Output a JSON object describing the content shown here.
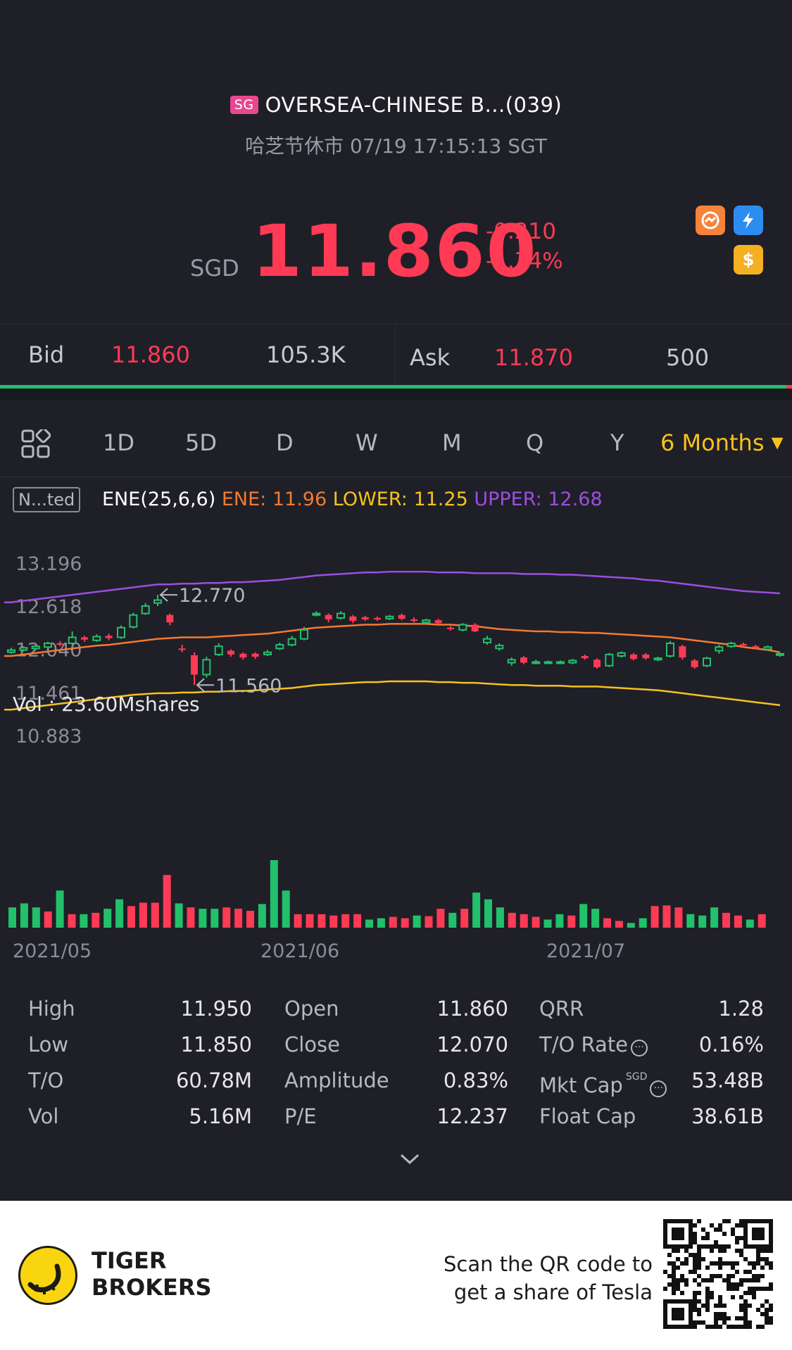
{
  "header": {
    "market_badge": "SG",
    "title": "OVERSEA-CHINESE B...(039)",
    "status": "哈芝节休市 07/19 17:15:13 SGT",
    "currency": "SGD",
    "price": "11.860",
    "change": "-0.210",
    "change_pct": "-1.74%",
    "icons": [
      "orange-circle-icon",
      "lightning-level1-icon",
      "dollar-coin-icon"
    ]
  },
  "bidask": {
    "bid_label": "Bid",
    "bid_price": "11.860",
    "bid_vol": "105.3K",
    "ask_label": "Ask",
    "ask_price": "11.870",
    "ask_vol": "500"
  },
  "tabs": [
    {
      "label": "1D"
    },
    {
      "label": "5D"
    },
    {
      "label": "D"
    },
    {
      "label": "W"
    },
    {
      "label": "M"
    },
    {
      "label": "Q"
    },
    {
      "label": "Y"
    },
    {
      "label": "6 Months",
      "active": true
    }
  ],
  "indicator": {
    "box": "N...ted",
    "name": "ENE(25,6,6)",
    "ene": "ENE: 11.96",
    "lower": "LOWER: 11.25",
    "upper": "UPPER: 12.68"
  },
  "chart_data": {
    "type": "candlestick",
    "y_ticks": [
      "13.196",
      "12.618",
      "12.040",
      "11.461",
      "10.883"
    ],
    "ylim": [
      10.883,
      13.196
    ],
    "annotations": [
      {
        "text": "12.770",
        "value": 12.77
      },
      {
        "text": "11.560",
        "value": 11.56
      }
    ],
    "x_ticks": [
      "2021/05",
      "2021/06",
      "2021/07"
    ],
    "volume_label": "Vol  : 23.60Mshares",
    "colors": {
      "up": "#22c06a",
      "down": "#ff3a55",
      "ene": "#f37a30",
      "lower": "#f6c21c",
      "upper": "#9b4ee0"
    },
    "candles": [
      {
        "o": 12.0,
        "c": 12.03,
        "h": 12.06,
        "l": 11.98
      },
      {
        "o": 12.03,
        "c": 12.06,
        "h": 12.08,
        "l": 12.01
      },
      {
        "o": 12.05,
        "c": 12.08,
        "h": 12.1,
        "l": 12.03
      },
      {
        "o": 12.07,
        "c": 12.12,
        "h": 12.14,
        "l": 12.05
      },
      {
        "o": 12.12,
        "c": 12.11,
        "h": 12.15,
        "l": 12.08
      },
      {
        "o": 12.12,
        "c": 12.2,
        "h": 12.28,
        "l": 12.1
      },
      {
        "o": 12.2,
        "c": 12.17,
        "h": 12.22,
        "l": 12.14
      },
      {
        "o": 12.16,
        "c": 12.21,
        "h": 12.24,
        "l": 12.14
      },
      {
        "o": 12.22,
        "c": 12.19,
        "h": 12.25,
        "l": 12.16
      },
      {
        "o": 12.2,
        "c": 12.33,
        "h": 12.36,
        "l": 12.18
      },
      {
        "o": 12.34,
        "c": 12.5,
        "h": 12.53,
        "l": 12.32
      },
      {
        "o": 12.52,
        "c": 12.62,
        "h": 12.66,
        "l": 12.5
      },
      {
        "o": 12.66,
        "c": 12.7,
        "h": 12.77,
        "l": 12.62
      },
      {
        "o": 12.5,
        "c": 12.4,
        "h": 12.52,
        "l": 12.36
      },
      {
        "o": 12.05,
        "c": 12.04,
        "h": 12.1,
        "l": 12.0
      },
      {
        "o": 11.96,
        "c": 11.7,
        "h": 12.0,
        "l": 11.56
      },
      {
        "o": 11.7,
        "c": 11.9,
        "h": 11.94,
        "l": 11.66
      },
      {
        "o": 11.97,
        "c": 12.08,
        "h": 12.12,
        "l": 11.95
      },
      {
        "o": 12.02,
        "c": 11.97,
        "h": 12.04,
        "l": 11.94
      },
      {
        "o": 11.98,
        "c": 11.93,
        "h": 12.0,
        "l": 11.9
      },
      {
        "o": 11.98,
        "c": 11.94,
        "h": 12.0,
        "l": 11.91
      },
      {
        "o": 11.97,
        "c": 12.0,
        "h": 12.03,
        "l": 11.95
      },
      {
        "o": 12.05,
        "c": 12.1,
        "h": 12.13,
        "l": 12.03
      },
      {
        "o": 12.1,
        "c": 12.18,
        "h": 12.22,
        "l": 12.08
      },
      {
        "o": 12.18,
        "c": 12.3,
        "h": 12.34,
        "l": 12.16
      },
      {
        "o": 12.5,
        "c": 12.52,
        "h": 12.55,
        "l": 12.48
      },
      {
        "o": 12.5,
        "c": 12.44,
        "h": 12.52,
        "l": 12.4
      },
      {
        "o": 12.46,
        "c": 12.52,
        "h": 12.55,
        "l": 12.44
      },
      {
        "o": 12.48,
        "c": 12.42,
        "h": 12.5,
        "l": 12.39
      },
      {
        "o": 12.47,
        "c": 12.44,
        "h": 12.49,
        "l": 12.42
      },
      {
        "o": 12.46,
        "c": 12.44,
        "h": 12.48,
        "l": 12.42
      },
      {
        "o": 12.45,
        "c": 12.48,
        "h": 12.5,
        "l": 12.43
      },
      {
        "o": 12.5,
        "c": 12.45,
        "h": 12.52,
        "l": 12.43
      },
      {
        "o": 12.44,
        "c": 12.42,
        "h": 12.47,
        "l": 12.4
      },
      {
        "o": 12.4,
        "c": 12.43,
        "h": 12.45,
        "l": 12.38
      },
      {
        "o": 12.43,
        "c": 12.39,
        "h": 12.45,
        "l": 12.37
      },
      {
        "o": 12.33,
        "c": 12.31,
        "h": 12.35,
        "l": 12.29
      },
      {
        "o": 12.3,
        "c": 12.37,
        "h": 12.39,
        "l": 12.28
      },
      {
        "o": 12.37,
        "c": 12.28,
        "h": 12.39,
        "l": 12.27
      },
      {
        "o": 12.13,
        "c": 12.18,
        "h": 12.22,
        "l": 12.1
      },
      {
        "o": 12.05,
        "c": 12.09,
        "h": 12.12,
        "l": 12.02
      },
      {
        "o": 11.86,
        "c": 11.9,
        "h": 11.93,
        "l": 11.82
      },
      {
        "o": 11.93,
        "c": 11.86,
        "h": 11.95,
        "l": 11.84
      },
      {
        "o": 11.87,
        "c": 11.87,
        "h": 11.9,
        "l": 11.84
      },
      {
        "o": 11.87,
        "c": 11.87,
        "h": 11.89,
        "l": 11.85
      },
      {
        "o": 11.87,
        "c": 11.87,
        "h": 11.89,
        "l": 11.85
      },
      {
        "o": 11.86,
        "c": 11.89,
        "h": 11.91,
        "l": 11.84
      },
      {
        "o": 11.95,
        "c": 11.92,
        "h": 11.97,
        "l": 11.9
      },
      {
        "o": 11.9,
        "c": 11.8,
        "h": 11.92,
        "l": 11.78
      },
      {
        "o": 11.82,
        "c": 11.97,
        "h": 11.99,
        "l": 11.8
      },
      {
        "o": 11.95,
        "c": 11.99,
        "h": 12.01,
        "l": 11.93
      },
      {
        "o": 11.97,
        "c": 11.91,
        "h": 11.99,
        "l": 11.89
      },
      {
        "o": 11.97,
        "c": 11.92,
        "h": 11.99,
        "l": 11.9
      },
      {
        "o": 11.9,
        "c": 11.92,
        "h": 11.94,
        "l": 11.88
      },
      {
        "o": 11.95,
        "c": 12.12,
        "h": 12.15,
        "l": 11.93
      },
      {
        "o": 12.08,
        "c": 11.93,
        "h": 12.1,
        "l": 11.9
      },
      {
        "o": 11.89,
        "c": 11.8,
        "h": 11.91,
        "l": 11.78
      },
      {
        "o": 11.82,
        "c": 11.92,
        "h": 11.94,
        "l": 11.8
      },
      {
        "o": 12.02,
        "c": 12.07,
        "h": 12.1,
        "l": 11.98
      },
      {
        "o": 12.08,
        "c": 12.12,
        "h": 12.14,
        "l": 12.06
      },
      {
        "o": 12.11,
        "c": 12.09,
        "h": 12.13,
        "l": 12.07
      },
      {
        "o": 12.08,
        "c": 12.06,
        "h": 12.1,
        "l": 12.04
      },
      {
        "o": 12.04,
        "c": 12.07,
        "h": 12.09,
        "l": 12.02
      },
      {
        "o": 11.98,
        "c": 11.98,
        "h": 11.98,
        "l": 11.94
      }
    ],
    "volumes": [
      0.3,
      0.36,
      0.3,
      0.24,
      0.55,
      0.2,
      0.2,
      0.22,
      0.28,
      0.42,
      0.32,
      0.37,
      0.37,
      0.78,
      0.36,
      0.3,
      0.28,
      0.28,
      0.3,
      0.28,
      0.25,
      0.35,
      1.0,
      0.55,
      0.2,
      0.2,
      0.2,
      0.18,
      0.2,
      0.2,
      0.12,
      0.14,
      0.16,
      0.14,
      0.18,
      0.17,
      0.28,
      0.22,
      0.28,
      0.52,
      0.42,
      0.3,
      0.22,
      0.2,
      0.16,
      0.12,
      0.2,
      0.18,
      0.35,
      0.28,
      0.14,
      0.1,
      0.07,
      0.14,
      0.32,
      0.33,
      0.3,
      0.2,
      0.18,
      0.3,
      0.22,
      0.18,
      0.12,
      0.2
    ],
    "volume_colors": [
      "up",
      "up",
      "up",
      "down",
      "up",
      "down",
      "up",
      "down",
      "up",
      "up",
      "down",
      "down",
      "down",
      "down",
      "up",
      "down",
      "up",
      "up",
      "down",
      "down",
      "down",
      "up",
      "up",
      "up",
      "down",
      "down",
      "down",
      "down",
      "down",
      "down",
      "up",
      "up",
      "down",
      "down",
      "up",
      "down",
      "down",
      "up",
      "down",
      "up",
      "up",
      "up",
      "down",
      "down",
      "down",
      "up",
      "up",
      "down",
      "up",
      "up",
      "down",
      "down",
      "up",
      "up",
      "down",
      "down",
      "down",
      "up",
      "up",
      "up",
      "down",
      "down",
      "up",
      "down"
    ],
    "ene": [
      11.95,
      11.97,
      11.99,
      12.01,
      12.03,
      12.05,
      12.07,
      12.09,
      12.1,
      12.12,
      12.14,
      12.16,
      12.18,
      12.19,
      12.2,
      12.2,
      12.2,
      12.21,
      12.22,
      12.23,
      12.24,
      12.25,
      12.27,
      12.29,
      12.31,
      12.33,
      12.34,
      12.35,
      12.36,
      12.37,
      12.37,
      12.38,
      12.38,
      12.38,
      12.38,
      12.37,
      12.37,
      12.36,
      12.35,
      12.33,
      12.31,
      12.3,
      12.29,
      12.28,
      12.28,
      12.27,
      12.27,
      12.26,
      12.26,
      12.25,
      12.24,
      12.23,
      12.22,
      12.21,
      12.2,
      12.18,
      12.16,
      12.14,
      12.12,
      12.1,
      12.07,
      12.05,
      12.03,
      12.0
    ],
    "lower": [
      11.23,
      11.25,
      11.27,
      11.29,
      11.31,
      11.33,
      11.35,
      11.37,
      11.39,
      11.41,
      11.43,
      11.44,
      11.45,
      11.45,
      11.46,
      11.46,
      11.47,
      11.47,
      11.48,
      11.48,
      11.49,
      11.5,
      11.51,
      11.52,
      11.54,
      11.56,
      11.57,
      11.58,
      11.59,
      11.6,
      11.6,
      11.61,
      11.61,
      11.61,
      11.61,
      11.6,
      11.6,
      11.59,
      11.59,
      11.58,
      11.57,
      11.56,
      11.56,
      11.55,
      11.55,
      11.55,
      11.54,
      11.54,
      11.54,
      11.53,
      11.52,
      11.51,
      11.5,
      11.49,
      11.47,
      11.45,
      11.43,
      11.41,
      11.39,
      11.37,
      11.35,
      11.33,
      11.31,
      11.29
    ],
    "upper": [
      12.67,
      12.69,
      12.71,
      12.73,
      12.75,
      12.77,
      12.79,
      12.81,
      12.83,
      12.85,
      12.87,
      12.89,
      12.91,
      12.91,
      12.92,
      12.92,
      12.93,
      12.93,
      12.94,
      12.94,
      12.95,
      12.96,
      12.97,
      12.99,
      13.01,
      13.03,
      13.04,
      13.05,
      13.06,
      13.07,
      13.07,
      13.08,
      13.08,
      13.08,
      13.08,
      13.07,
      13.07,
      13.07,
      13.06,
      13.06,
      13.06,
      13.06,
      13.05,
      13.05,
      13.05,
      13.04,
      13.04,
      13.03,
      13.02,
      13.01,
      13.0,
      12.99,
      12.97,
      12.96,
      12.94,
      12.92,
      12.9,
      12.88,
      12.86,
      12.84,
      12.82,
      12.81,
      12.8,
      12.79
    ]
  },
  "stats": [
    {
      "label": "High",
      "value": "11.950"
    },
    {
      "label": "Low",
      "value": "11.850"
    },
    {
      "label": "T/O",
      "value": "60.78M"
    },
    {
      "label": "Vol",
      "value": "5.16M"
    },
    {
      "label": "Open",
      "value": "11.860"
    },
    {
      "label": "Close",
      "value": "12.070"
    },
    {
      "label": "Amplitude",
      "value": "0.83%"
    },
    {
      "label": "P/E",
      "value": "12.237"
    },
    {
      "label": "QRR",
      "value": "1.28"
    },
    {
      "label": "T/O Rate",
      "value": "0.16%"
    },
    {
      "label": "Mkt Cap",
      "value": "53.48B",
      "sup": "SGD"
    },
    {
      "label": "Float Cap",
      "value": "38.61B"
    }
  ],
  "footer": {
    "brand_line1": "TIGER",
    "brand_line2": "BROKERS",
    "promo_line1": "Scan the QR code to",
    "promo_line2": "get a share of Tesla"
  }
}
